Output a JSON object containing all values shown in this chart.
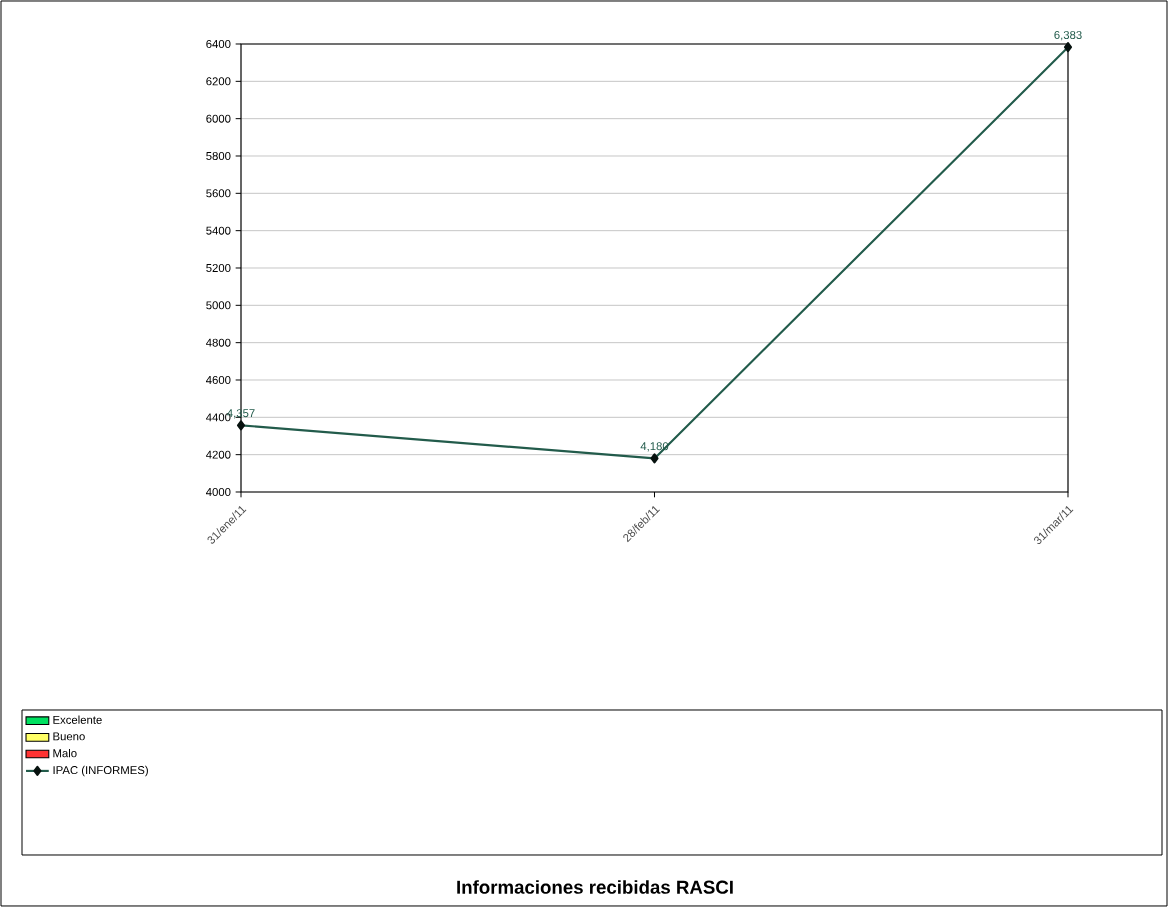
{
  "chart_data": {
    "type": "line",
    "title": "Informaciones  recibidas RASCI",
    "categories": [
      "31/ene/11",
      "28/feb/11",
      "31/mar/11"
    ],
    "series": [
      {
        "name": "Excelente",
        "type": "bar",
        "color": "#00e060",
        "values": [
          null,
          null,
          null
        ]
      },
      {
        "name": "Bueno",
        "type": "bar",
        "color": "#ffff66",
        "values": [
          null,
          null,
          null
        ]
      },
      {
        "name": "Malo",
        "type": "bar",
        "color": "#ff3333",
        "values": [
          null,
          null,
          null
        ]
      },
      {
        "name": "IPAC (INFORMES)",
        "color": "#225b4b",
        "values": [
          4357,
          4180,
          6383
        ],
        "value_labels": [
          "4,357",
          "4,180",
          "6,383"
        ]
      }
    ],
    "ylim": [
      4000,
      6400
    ],
    "yticks": [
      4000,
      4200,
      4400,
      4600,
      4800,
      5000,
      5200,
      5400,
      5600,
      5800,
      6000,
      6200,
      6400
    ],
    "grid": "y",
    "legend": "bottom",
    "marker": "diamond"
  }
}
